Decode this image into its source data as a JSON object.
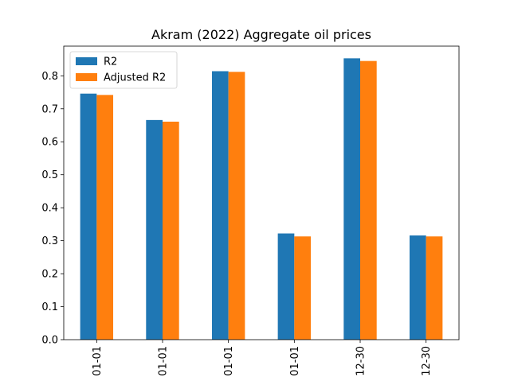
{
  "chart_data": {
    "type": "bar",
    "title": "Akram (2022) Aggregate oil prices",
    "xlabel": "",
    "ylabel": "",
    "categories": [
      "01-01",
      "01-01",
      "01-01",
      "01-01",
      "12-30",
      "12-30"
    ],
    "series": [
      {
        "name": "R2",
        "color": "#1f77b4",
        "values": [
          0.746,
          0.666,
          0.814,
          0.322,
          0.853,
          0.316
        ]
      },
      {
        "name": "Adjusted R2",
        "color": "#ff7f0e",
        "values": [
          0.742,
          0.661,
          0.812,
          0.313,
          0.845,
          0.313
        ]
      }
    ],
    "ylim": [
      0,
      0.89
    ],
    "yticks": [
      0.0,
      0.1,
      0.2,
      0.3,
      0.4,
      0.5,
      0.6,
      0.7,
      0.8
    ],
    "ytick_labels": [
      "0.0",
      "0.1",
      "0.2",
      "0.3",
      "0.4",
      "0.5",
      "0.6",
      "0.7",
      "0.8"
    ],
    "grid": false,
    "legend_position": "top-left"
  }
}
